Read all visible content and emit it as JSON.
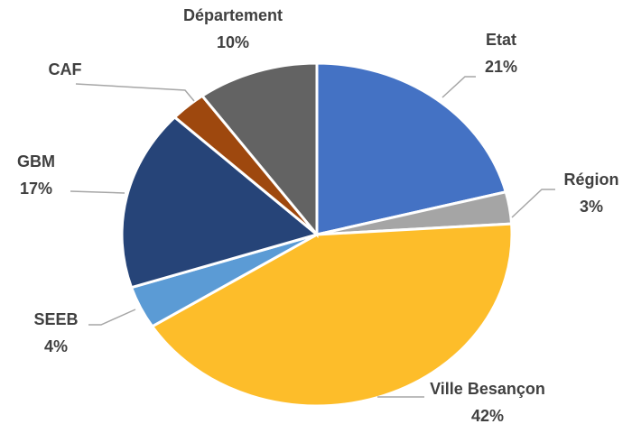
{
  "chart_data": {
    "type": "pie",
    "categories": [
      "Etat",
      "Région",
      "Ville Besançon",
      "SEEB",
      "GBM",
      "CAF",
      "Département"
    ],
    "values": [
      21,
      3,
      42,
      4,
      17,
      3,
      10
    ],
    "value_labels": [
      "21%",
      "3%",
      "42%",
      "4%",
      "17%",
      null,
      "10%"
    ],
    "colors": [
      "#4472c4",
      "#a5a5a5",
      "#fdbd2a",
      "#5b9bd5",
      "#264478",
      "#9e480e",
      "#636363"
    ]
  }
}
